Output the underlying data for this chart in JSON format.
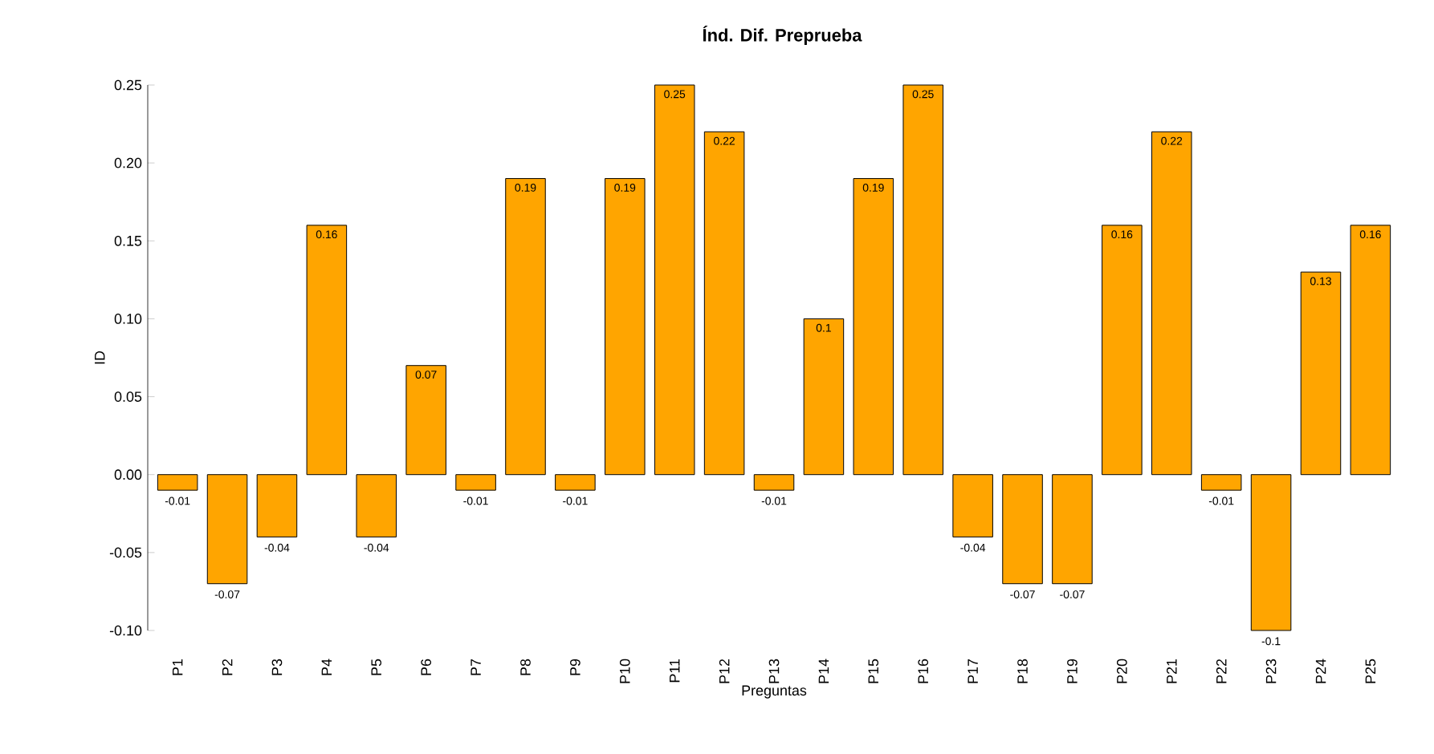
{
  "chart_data": {
    "type": "bar",
    "title": "Índ. Dif. Preprueba",
    "xlabel": "Preguntas",
    "ylabel": "ID",
    "categories": [
      "P1",
      "P2",
      "P3",
      "P4",
      "P5",
      "P6",
      "P7",
      "P8",
      "P9",
      "P10",
      "P11",
      "P12",
      "P13",
      "P14",
      "P15",
      "P16",
      "P17",
      "P18",
      "P19",
      "P20",
      "P21",
      "P22",
      "P23",
      "P24",
      "P25"
    ],
    "values": [
      -0.01,
      -0.07,
      -0.04,
      0.16,
      -0.04,
      0.07,
      -0.01,
      0.19,
      -0.01,
      0.19,
      0.25,
      0.22,
      -0.01,
      0.1,
      0.19,
      0.25,
      -0.04,
      -0.07,
      -0.07,
      0.16,
      0.22,
      -0.01,
      -0.1,
      0.13,
      0.16
    ],
    "color": "#ffa500",
    "ylim": [
      -0.1,
      0.25
    ],
    "yticks": [
      {
        "value": -0.1,
        "label": "-0.10"
      },
      {
        "value": -0.05,
        "label": "-0.05"
      },
      {
        "value": 0,
        "label": "0.00"
      },
      {
        "value": 0.05,
        "label": "0.05"
      },
      {
        "value": 0.1,
        "label": "0.10"
      },
      {
        "value": 0.15,
        "label": "0.15"
      },
      {
        "value": 0.2,
        "label": "0.20"
      },
      {
        "value": 0.25,
        "label": "0.25"
      }
    ],
    "data_labels": true,
    "grid": false
  }
}
